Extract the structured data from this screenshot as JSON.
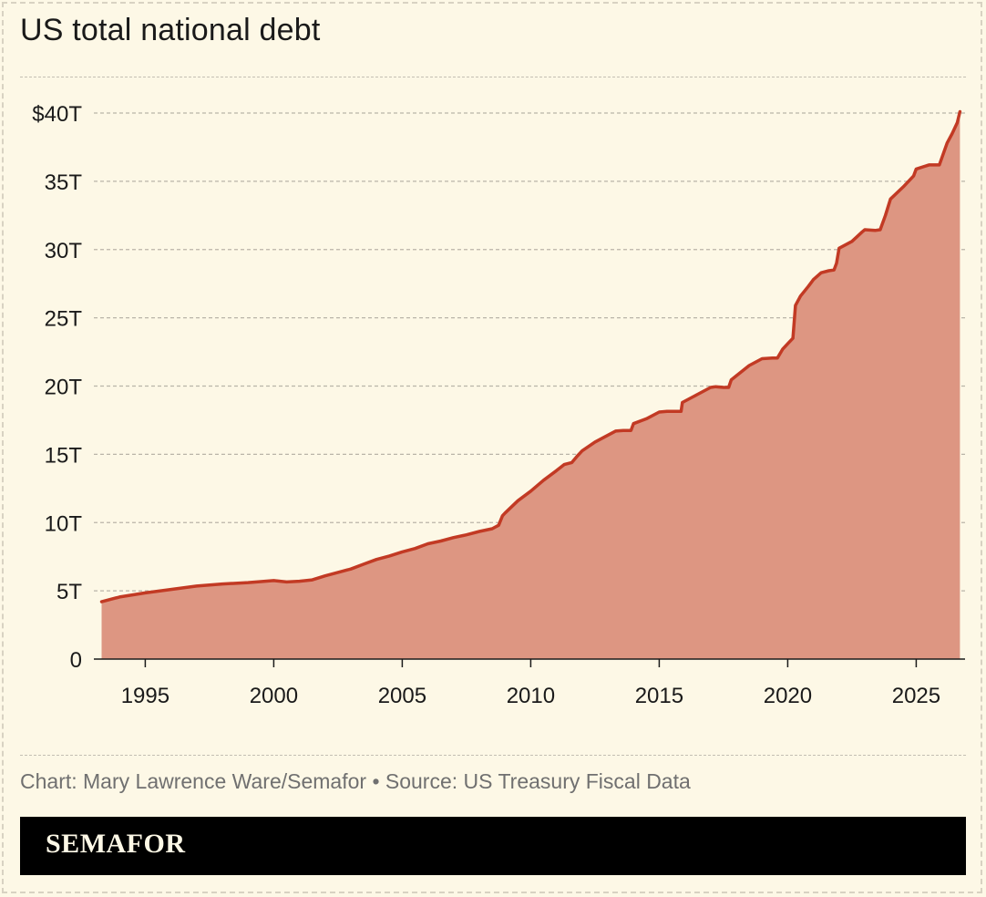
{
  "title": "US total national debt",
  "footer": "Chart: Mary Lawrence Ware/Semafor • Source: US Treasury Fiscal Data",
  "brand": "SEMAFOR",
  "colors": {
    "line": "#c23a24",
    "fill": "#dd9682",
    "background": "#fdf8e6"
  },
  "chart_data": {
    "type": "area",
    "title": "US total national debt",
    "xlabel": "",
    "ylabel": "",
    "xlim": [
      1993.0,
      2026.9
    ],
    "ylim": [
      0,
      40
    ],
    "y_unit": "trillion USD",
    "grid": true,
    "x_ticks": [
      1995,
      2000,
      2005,
      2010,
      2015,
      2020,
      2025
    ],
    "x_tick_labels": [
      "1995",
      "2000",
      "2005",
      "2010",
      "2015",
      "2020",
      "2025"
    ],
    "y_ticks": [
      0,
      5,
      10,
      15,
      20,
      25,
      30,
      35,
      40
    ],
    "y_tick_labels": [
      "0",
      "5T",
      "10T",
      "15T",
      "20T",
      "25T",
      "30T",
      "35T",
      "$40T"
    ],
    "series": [
      {
        "x": [
          1993.3,
          1994.0,
          1995.0,
          1996.0,
          1997.0,
          1998.0,
          1999.0,
          2000.0,
          2000.5,
          2001.0,
          2001.5,
          2002.0,
          2002.5,
          2003.0,
          2003.5,
          2004.0,
          2004.5,
          2005.0,
          2005.5,
          2006.0,
          2006.5,
          2007.0,
          2007.5,
          2008.0,
          2008.5,
          2008.75,
          2008.9,
          2009.0,
          2009.5,
          2010.0,
          2010.5,
          2011.0,
          2011.3,
          2011.6,
          2011.8,
          2012.0,
          2012.5,
          2013.0,
          2013.3,
          2013.6,
          2013.9,
          2014.0,
          2014.5,
          2015.0,
          2015.3,
          2015.6,
          2015.85,
          2015.9,
          2016.5,
          2017.0,
          2017.2,
          2017.5,
          2017.7,
          2017.8,
          2018.0,
          2018.5,
          2019.0,
          2019.4,
          2019.6,
          2019.8,
          2020.0,
          2020.2,
          2020.3,
          2020.5,
          2020.8,
          2021.0,
          2021.3,
          2021.6,
          2021.8,
          2021.9,
          2022.0,
          2022.5,
          2022.9,
          2023.0,
          2023.4,
          2023.6,
          2023.8,
          2024.0,
          2024.5,
          2024.9,
          2025.0,
          2025.5,
          2025.6,
          2025.9,
          2026.2,
          2026.4,
          2026.6,
          2026.7
        ],
        "y": [
          4.2,
          4.55,
          4.85,
          5.1,
          5.35,
          5.5,
          5.6,
          5.75,
          5.65,
          5.7,
          5.8,
          6.1,
          6.35,
          6.6,
          6.95,
          7.3,
          7.55,
          7.85,
          8.1,
          8.45,
          8.65,
          8.9,
          9.1,
          9.35,
          9.55,
          9.8,
          10.5,
          10.7,
          11.6,
          12.3,
          13.1,
          13.8,
          14.25,
          14.4,
          14.85,
          15.25,
          15.9,
          16.4,
          16.7,
          16.75,
          16.75,
          17.25,
          17.6,
          18.1,
          18.15,
          18.15,
          18.15,
          18.8,
          19.4,
          19.9,
          19.95,
          19.9,
          19.9,
          20.45,
          20.75,
          21.5,
          22.0,
          22.05,
          22.05,
          22.7,
          23.1,
          23.5,
          25.9,
          26.6,
          27.3,
          27.8,
          28.3,
          28.45,
          28.5,
          29.0,
          30.1,
          30.6,
          31.3,
          31.45,
          31.4,
          31.45,
          32.5,
          33.7,
          34.6,
          35.4,
          35.9,
          36.2,
          36.2,
          36.2,
          37.8,
          38.5,
          39.3,
          40.1
        ]
      }
    ]
  }
}
